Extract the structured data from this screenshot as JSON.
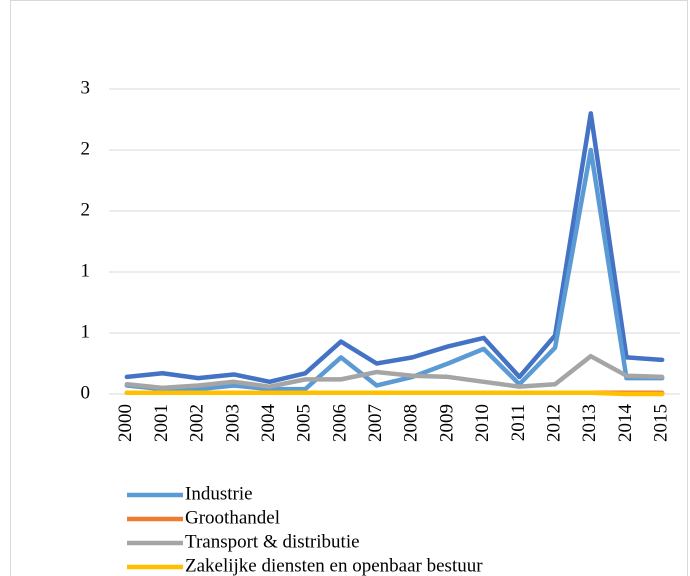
{
  "chart_data": {
    "type": "line",
    "categories": [
      "2000",
      "2001",
      "2002",
      "2003",
      "2004",
      "2005",
      "2006",
      "2007",
      "2008",
      "2009",
      "2010",
      "2011",
      "2012",
      "2013",
      "2014",
      "2015"
    ],
    "series": [
      {
        "color": "#4472c4",
        "values": [
          0.14,
          0.17,
          0.13,
          0.16,
          0.1,
          0.17,
          0.43,
          0.25,
          0.3,
          0.39,
          0.46,
          0.14,
          0.48,
          2.3,
          0.3,
          0.28
        ]
      },
      {
        "name": "Industrie",
        "color": "#5b9bd5",
        "values": [
          0.07,
          0.04,
          0.04,
          0.07,
          0.04,
          0.04,
          0.3,
          0.07,
          0.14,
          0.25,
          0.37,
          0.08,
          0.38,
          2.0,
          0.13,
          0.13
        ]
      },
      {
        "name": "Groothandel",
        "color": "#ed7d31",
        "values": [
          0.01,
          0.01,
          0.01,
          0.01,
          0.01,
          0.01,
          0.01,
          0.01,
          0.01,
          0.01,
          0.01,
          0.01,
          0.01,
          0.01,
          0.01,
          0.01
        ]
      },
      {
        "name": "Transport & distributie",
        "color": "#a5a5a5",
        "values": [
          0.08,
          0.05,
          0.07,
          0.1,
          0.06,
          0.12,
          0.12,
          0.18,
          0.15,
          0.14,
          0.1,
          0.06,
          0.08,
          0.31,
          0.15,
          0.14
        ]
      },
      {
        "name": "Zakelijke diensten en openbaar bestuur",
        "color": "#ffc000",
        "values": [
          0.01,
          0.01,
          0.01,
          0.01,
          0.01,
          0.01,
          0.01,
          0.01,
          0.01,
          0.01,
          0.01,
          0.01,
          0.01,
          0.01,
          0,
          0
        ]
      }
    ],
    "ylim": [
      0,
      2.5
    ],
    "yticks": [
      0,
      {
        "value": 0.5,
        "label": "1"
      },
      1,
      {
        "value": 1.5,
        "label": "2"
      },
      2,
      {
        "value": 2.5,
        "label": "3"
      }
    ],
    "grid": true
  }
}
